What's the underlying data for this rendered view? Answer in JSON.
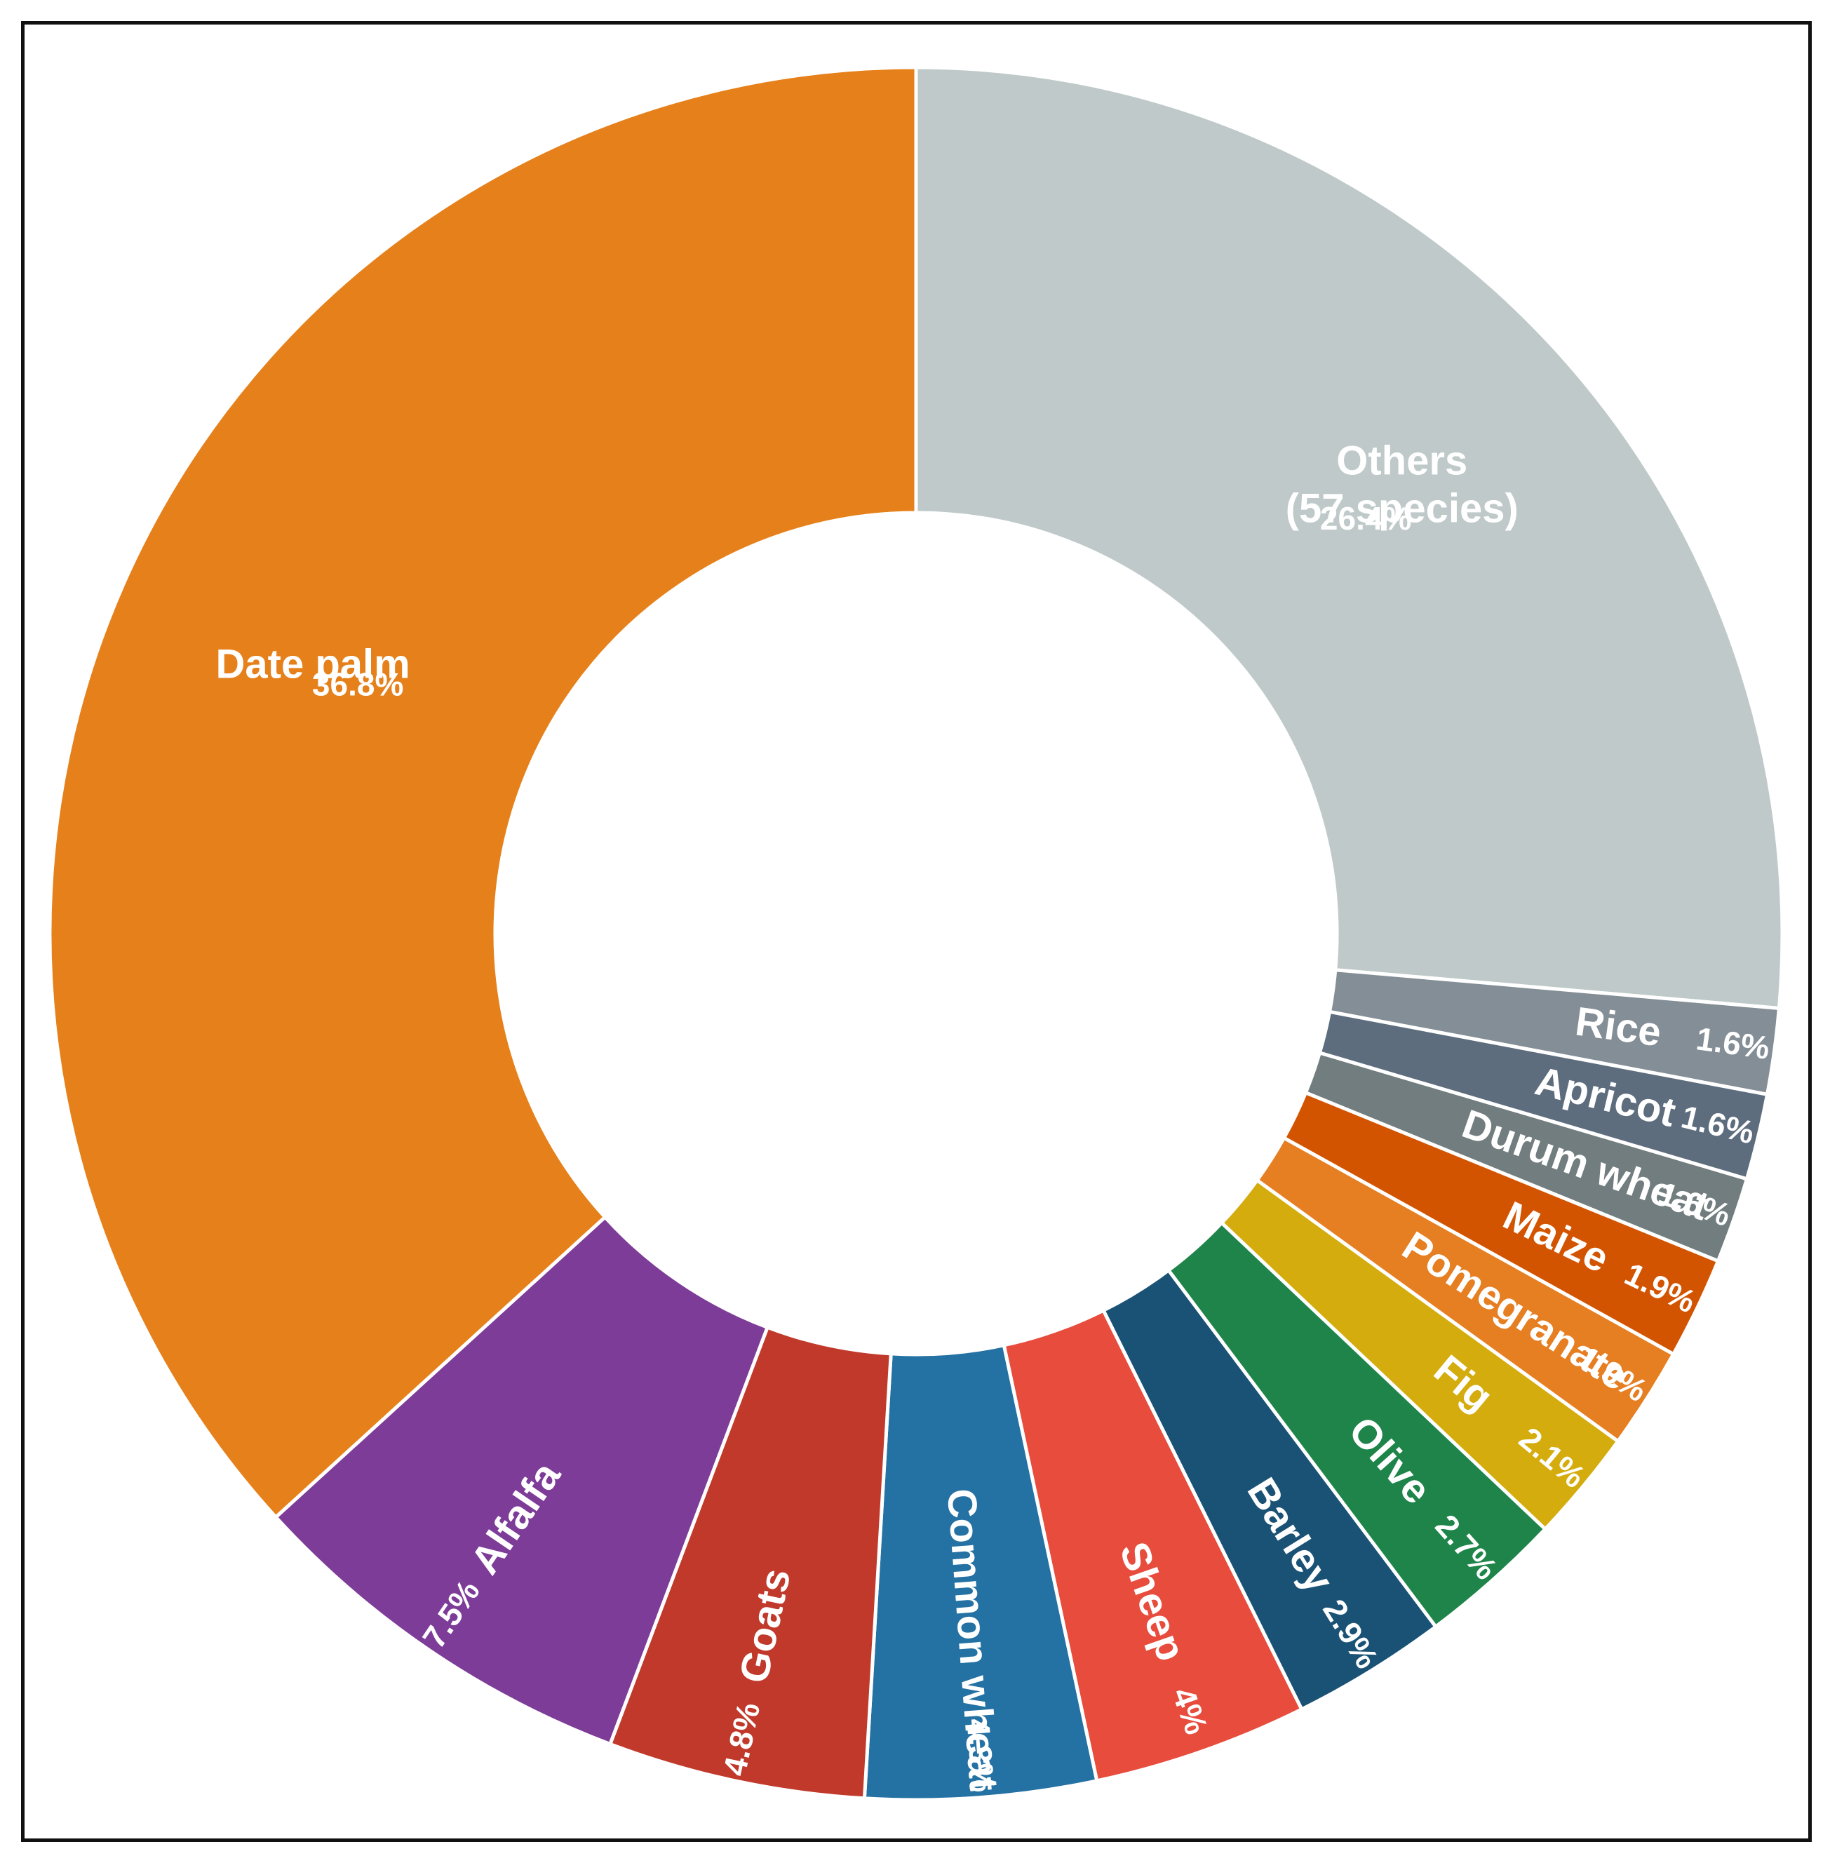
{
  "chart_data": {
    "type": "pie",
    "variant": "donut",
    "title": "",
    "slices": [
      {
        "label": "Others\n(57 species)",
        "value": 26.4,
        "pct_label": "26.4%",
        "color": "#BFC9C9"
      },
      {
        "label": "Rice",
        "value": 1.6,
        "pct_label": "1.6%",
        "color": "#848E96"
      },
      {
        "label": "Apricot",
        "value": 1.6,
        "pct_label": "1.6%",
        "color": "#5D6D7E"
      },
      {
        "label": "Durum wheat",
        "value": 1.6,
        "pct_label": "1.6%",
        "color": "#717D7E"
      },
      {
        "label": "Maize",
        "value": 1.9,
        "pct_label": "1.9%",
        "color": "#D35400"
      },
      {
        "label": "Pomegranate",
        "value": 1.9,
        "pct_label": "1.9%",
        "color": "#E67E22"
      },
      {
        "label": "Fig",
        "value": 2.1,
        "pct_label": "2.1%",
        "color": "#D4AC0D"
      },
      {
        "label": "Olive",
        "value": 2.7,
        "pct_label": "2.7%",
        "color": "#1E8449"
      },
      {
        "label": "Barley",
        "value": 2.9,
        "pct_label": "2.9%",
        "color": "#1A5276"
      },
      {
        "label": "Sheep",
        "value": 4.0,
        "pct_label": "4%",
        "color": "#E74C3C"
      },
      {
        "label": "Common wheat",
        "value": 4.3,
        "pct_label": "4.3%",
        "color": "#2471A3"
      },
      {
        "label": "Goats",
        "value": 4.8,
        "pct_label": "4.8%",
        "color": "#C0392B"
      },
      {
        "label": "Alfalfa",
        "value": 7.5,
        "pct_label": "7.5%",
        "color": "#7D3C98"
      },
      {
        "label": "Date palm",
        "value": 36.8,
        "pct_label": "36.8%",
        "color": "#E6801B"
      }
    ],
    "start": "12 o'clock",
    "direction": "clockwise",
    "legend": "none"
  }
}
